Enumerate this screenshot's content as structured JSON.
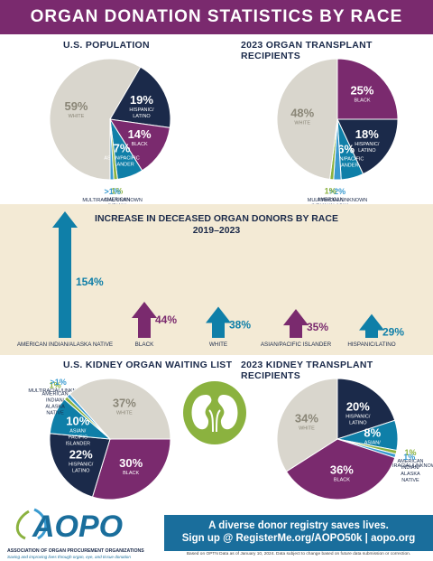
{
  "header": {
    "title": "ORGAN DONATION STATISTICS BY RACE"
  },
  "colors": {
    "purple": "#7a2a6e",
    "navy": "#1b2a4a",
    "teal": "#0f7fa8",
    "green": "#8bb23f",
    "sky": "#3a9bd0",
    "gray": "#d9d6cd",
    "band": "#f3ead5"
  },
  "chart_data": [
    {
      "type": "pie",
      "title": "U.S. POPULATION",
      "slices": [
        {
          "label": "WHITE",
          "value": 59,
          "text": "59%",
          "color": "#d9d6cd"
        },
        {
          "label": "HISPANIC/ LATINO",
          "value": 19,
          "text": "19%",
          "color": "#1b2a4a"
        },
        {
          "label": "BLACK",
          "value": 14,
          "text": "14%",
          "color": "#7a2a6e"
        },
        {
          "label": "ASIAN/PACIFIC ISLANDER",
          "value": 7,
          "text": "7%",
          "color": "#0f7fa8"
        },
        {
          "label": "AMERICAN INDIAN/ ALASKA NATIVE",
          "value": 1,
          "text": "1%",
          "color": "#8bb23f"
        },
        {
          "label": "MULTIRACIAL/UNKNOWN",
          "value": 1,
          "text": ">1%",
          "color": "#3a9bd0"
        }
      ]
    },
    {
      "type": "pie",
      "title": "2023 ORGAN TRANSPLANT RECIPIENTS",
      "slices": [
        {
          "label": "BLACK",
          "value": 25,
          "text": "25%",
          "color": "#7a2a6e"
        },
        {
          "label": "HISPANIC/ LATINO",
          "value": 18,
          "text": "18%",
          "color": "#1b2a4a"
        },
        {
          "label": "ASIAN/PACIFIC ISLANDER",
          "value": 6,
          "text": "6%",
          "color": "#0f7fa8"
        },
        {
          "label": "MULTIRACIAL/UNKNOWN",
          "value": 2,
          "text": ">2%",
          "color": "#3a9bd0"
        },
        {
          "label": "AMERICAN INDIAN/ALASKA NATIVE",
          "value": 1,
          "text": "1%",
          "color": "#8bb23f"
        },
        {
          "label": "WHITE",
          "value": 48,
          "text": "48%",
          "color": "#d9d6cd"
        }
      ]
    },
    {
      "type": "bar",
      "title": "INCREASE IN DECEASED ORGAN DONORS BY RACE",
      "subtitle": "2019–2023",
      "categories": [
        "AMERICAN INDIAN/ALASKA NATIVE",
        "BLACK",
        "WHITE",
        "ASIAN/PACIFIC ISLANDER",
        "HISPANIC/LATINO"
      ],
      "values": [
        154,
        44,
        38,
        35,
        29
      ],
      "labels": [
        "154%",
        "44%",
        "38%",
        "35%",
        "29%"
      ],
      "colors": [
        "#0f7fa8",
        "#7a2a6e",
        "#0f7fa8",
        "#7a2a6e",
        "#0f7fa8"
      ]
    },
    {
      "type": "pie",
      "title": "U.S. KIDNEY ORGAN WAITING LIST",
      "slices": [
        {
          "label": "BLACK",
          "value": 30,
          "text": "30%",
          "color": "#7a2a6e"
        },
        {
          "label": "HISPANIC/ LATINO",
          "value": 22,
          "text": "22%",
          "color": "#1b2a4a"
        },
        {
          "label": "ASIAN/ PACIFIC ISLANDER",
          "value": 10,
          "text": "10%",
          "color": "#0f7fa8"
        },
        {
          "label": "AMERICAN INDIAN/ ALASKA NATIVE",
          "value": 1,
          "text": "1%",
          "color": "#8bb23f"
        },
        {
          "label": "MULTIRACIAL/UNKNOWN",
          "value": 1,
          "text": ">1%",
          "color": "#3a9bd0"
        },
        {
          "label": "WHITE",
          "value": 37,
          "text": "37%",
          "color": "#d9d6cd"
        }
      ]
    },
    {
      "type": "pie",
      "title": "2023 KIDNEY TRANSPLANT RECIPIENTS",
      "slices": [
        {
          "label": "HISPANIC/ LATINO",
          "value": 20,
          "text": "20%",
          "color": "#1b2a4a"
        },
        {
          "label": "ASIAN/ PACIFIC ISLANDER",
          "value": 8,
          "text": "8%",
          "color": "#0f7fa8"
        },
        {
          "label": "AMERICAN INDIAN/ ALASKA NATIVE",
          "value": 1,
          "text": "1%",
          "color": "#8bb23f"
        },
        {
          "label": "MULTIRACIAL/UNKNOWN",
          "value": 1,
          "text": "1%",
          "color": "#3a9bd0"
        },
        {
          "label": "BLACK",
          "value": 36,
          "text": "36%",
          "color": "#7a2a6e"
        },
        {
          "label": "WHITE",
          "value": 34,
          "text": "34%",
          "color": "#d9d6cd"
        }
      ]
    }
  ],
  "logo": {
    "name": "AOPO",
    "org": "ASSOCIATION OF ORGAN PROCUREMENT ORGANIZATIONS",
    "tagline": "Saving and improving lives through organ, eye, and tissue donation"
  },
  "cta": {
    "line1": "A diverse donor registry saves lives.",
    "line2": "Sign up @ RegisterMe.org/AOPO50k | aopo.org"
  },
  "footnote": "Based on OPTN Data as of January 10, 2024. Data subject to change based on future data submission or correction."
}
